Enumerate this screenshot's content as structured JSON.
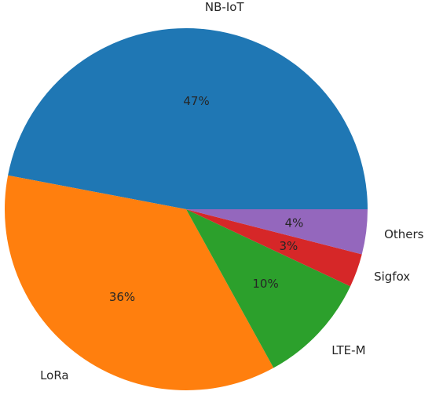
{
  "chart_data": {
    "type": "pie",
    "title": "",
    "categories": [
      "NB-IoT",
      "LoRa",
      "LTE-M",
      "Sigfox",
      "Others"
    ],
    "values": [
      47,
      36,
      10,
      3,
      4
    ],
    "percent_labels": [
      "47%",
      "36%",
      "10%",
      "3%",
      "4%"
    ],
    "colors": [
      "#1f77b4",
      "#ff7f0e",
      "#2ca02c",
      "#d62728",
      "#9467bd"
    ],
    "start_angle_deg": 0,
    "direction": "counterclockwise",
    "legend": false
  }
}
